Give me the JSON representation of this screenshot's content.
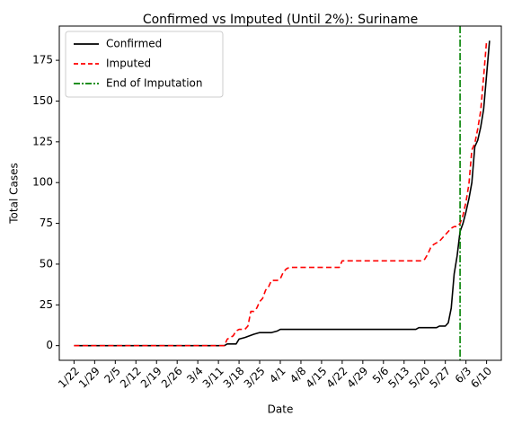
{
  "chart_data": {
    "type": "line",
    "title": "Confirmed vs Imputed (Until 2%): Suriname",
    "xlabel": "Date",
    "ylabel": "Total Cases",
    "x_ticks": [
      "1/22",
      "1/29",
      "2/5",
      "2/12",
      "2/19",
      "2/26",
      "3/4",
      "3/11",
      "3/18",
      "3/25",
      "4/1",
      "4/8",
      "4/15",
      "4/22",
      "4/29",
      "5/6",
      "5/13",
      "5/20",
      "5/27",
      "6/3",
      "6/10"
    ],
    "y_ticks": [
      "0",
      "25",
      "50",
      "75",
      "100",
      "125",
      "150",
      "175"
    ],
    "ylim": [
      -9,
      196
    ],
    "xlim": [
      "1/17",
      "6/15"
    ],
    "legend_position": "top-left",
    "series": [
      {
        "name": "Confirmed",
        "color": "#000000",
        "style": "solid",
        "points": [
          [
            "1/22",
            0
          ],
          [
            "3/13",
            0
          ],
          [
            "3/14",
            1
          ],
          [
            "3/17",
            1
          ],
          [
            "3/18",
            4
          ],
          [
            "3/20",
            5
          ],
          [
            "3/23",
            7
          ],
          [
            "3/25",
            8
          ],
          [
            "3/29",
            8
          ],
          [
            "3/31",
            9
          ],
          [
            "4/1",
            10
          ],
          [
            "4/14",
            10
          ],
          [
            "4/30",
            10
          ],
          [
            "5/17",
            10
          ],
          [
            "5/18",
            11
          ],
          [
            "5/24",
            11
          ],
          [
            "5/25",
            12
          ],
          [
            "5/27",
            12
          ],
          [
            "5/28",
            14
          ],
          [
            "5/29",
            23
          ],
          [
            "5/30",
            44
          ],
          [
            "5/31",
            55
          ],
          [
            "6/1",
            70
          ],
          [
            "6/2",
            75
          ],
          [
            "6/3",
            82
          ],
          [
            "6/4",
            90
          ],
          [
            "6/5",
            100
          ],
          [
            "6/6",
            122
          ],
          [
            "6/7",
            126
          ],
          [
            "6/8",
            134
          ],
          [
            "6/9",
            145
          ],
          [
            "6/10",
            166
          ],
          [
            "6/11",
            187
          ]
        ]
      },
      {
        "name": "Imputed",
        "color": "#ff0000",
        "style": "dashed",
        "points": [
          [
            "1/22",
            0
          ],
          [
            "3/13",
            0
          ],
          [
            "3/14",
            4
          ],
          [
            "3/15",
            5
          ],
          [
            "3/16",
            6
          ],
          [
            "3/17",
            9
          ],
          [
            "3/18",
            10
          ],
          [
            "3/20",
            10
          ],
          [
            "3/21",
            12
          ],
          [
            "3/22",
            21
          ],
          [
            "3/23",
            21
          ],
          [
            "3/24",
            23
          ],
          [
            "3/25",
            27
          ],
          [
            "3/26",
            29
          ],
          [
            "3/27",
            34
          ],
          [
            "3/28",
            36
          ],
          [
            "3/29",
            40
          ],
          [
            "3/30",
            40
          ],
          [
            "3/31",
            40
          ],
          [
            "4/1",
            41
          ],
          [
            "4/2",
            45
          ],
          [
            "4/3",
            47
          ],
          [
            "4/4",
            48
          ],
          [
            "4/5",
            48
          ],
          [
            "4/20",
            48
          ],
          [
            "4/21",
            48
          ],
          [
            "4/22",
            52
          ],
          [
            "4/30",
            52
          ],
          [
            "5/10",
            52
          ],
          [
            "5/19",
            52
          ],
          [
            "5/20",
            53
          ],
          [
            "5/21",
            56
          ],
          [
            "5/22",
            60
          ],
          [
            "5/23",
            62
          ],
          [
            "5/24",
            63
          ],
          [
            "5/25",
            64
          ],
          [
            "5/26",
            66
          ],
          [
            "5/27",
            68
          ],
          [
            "5/28",
            70
          ],
          [
            "5/29",
            72
          ],
          [
            "5/30",
            73
          ],
          [
            "5/31",
            73
          ],
          [
            "6/1",
            75
          ],
          [
            "6/2",
            80
          ],
          [
            "6/3",
            88
          ],
          [
            "6/4",
            99
          ],
          [
            "6/5",
            120
          ],
          [
            "6/6",
            124
          ],
          [
            "6/7",
            133
          ],
          [
            "6/8",
            144
          ],
          [
            "6/9",
            165
          ],
          [
            "6/10",
            187
          ]
        ]
      },
      {
        "name": "End of Imputation",
        "color": "#008000",
        "style": "dashdot",
        "vline_x": "6/1"
      }
    ]
  }
}
